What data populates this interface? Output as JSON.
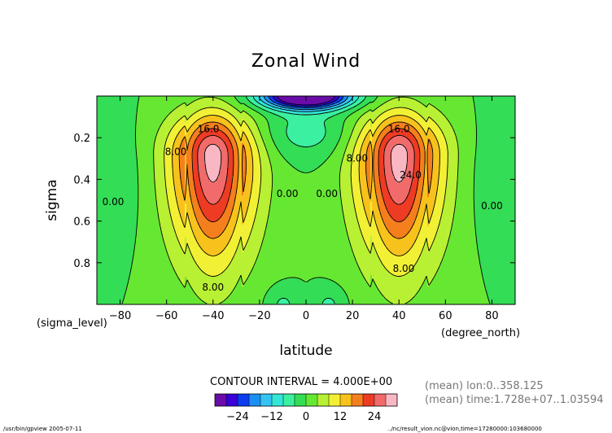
{
  "chart_data": {
    "type": "contour",
    "title": "Zonal Wind",
    "xlabel": "latitude",
    "ylabel": "sigma",
    "x_unit_label": "(degree_north)",
    "y_unit_label": "(sigma_level)",
    "xlim": [
      -90,
      90
    ],
    "ylim": [
      1.0,
      0.0
    ],
    "x_ticks": [
      -80,
      -60,
      -40,
      -20,
      0,
      20,
      40,
      60,
      80
    ],
    "x_tick_labels": [
      "−80",
      "−60",
      "−40",
      "−20",
      "0",
      "20",
      "40",
      "60",
      "80"
    ],
    "y_ticks": [
      0.2,
      0.4,
      0.6,
      0.8
    ],
    "y_tick_labels": [
      "0.2",
      "0.4",
      "0.6",
      "0.8"
    ],
    "contour_interval": "CONTOUR INTERVAL = 4.000E+00",
    "contour_levels": [
      -28,
      -24,
      -20,
      -16,
      -12,
      -8,
      -4,
      0,
      4,
      8,
      12,
      16,
      20,
      24,
      28
    ],
    "jets": [
      {
        "lat": -40,
        "sigma": 0.28,
        "max": 30
      },
      {
        "lat": 40,
        "sigma": 0.28,
        "max": 30
      }
    ],
    "contour_labels": [
      {
        "text": "16.0",
        "lat": -42,
        "sigma": 0.16
      },
      {
        "text": "8.00",
        "lat": -56,
        "sigma": 0.27
      },
      {
        "text": "0.00",
        "lat": -83,
        "sigma": 0.51
      },
      {
        "text": "0.00",
        "lat": -8,
        "sigma": 0.47
      },
      {
        "text": "8.00",
        "lat": -40,
        "sigma": 0.92
      },
      {
        "text": "16.0",
        "lat": 40,
        "sigma": 0.16
      },
      {
        "text": "8.00",
        "lat": 22,
        "sigma": 0.3
      },
      {
        "text": "24.0",
        "lat": 45,
        "sigma": 0.38
      },
      {
        "text": "0.00",
        "lat": 9,
        "sigma": 0.47
      },
      {
        "text": "0.00",
        "lat": 80,
        "sigma": 0.53
      },
      {
        "text": "8.00",
        "lat": 42,
        "sigma": 0.83
      }
    ],
    "colorbar": {
      "ticks": [
        -24,
        -12,
        0,
        12,
        24
      ],
      "tick_labels": [
        "−24",
        "−12",
        "0",
        "12",
        "24"
      ],
      "colors": [
        "#6a0ca8",
        "#3a00d8",
        "#0b3cf0",
        "#1c8df2",
        "#35c4f2",
        "#33e6d8",
        "#3bf0a0",
        "#33dd55",
        "#66e833",
        "#b8f033",
        "#f2f034",
        "#f7c21c",
        "#f57f1d",
        "#ee3b23",
        "#f26b6b",
        "#f9b7c4"
      ]
    },
    "info_lines": [
      "(mean) lon:0..358.125",
      "(mean) time:1.728e+07..1.03594"
    ],
    "footer_left": "/usr/bin/gpview  2005-07-11",
    "footer_right": "../nc/result_vion.nc@vion,time=17280000:103680000"
  }
}
